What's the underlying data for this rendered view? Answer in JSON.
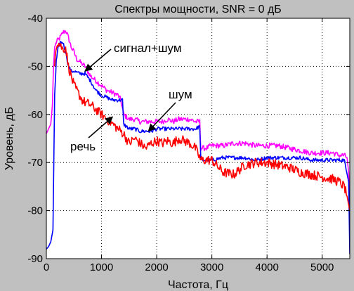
{
  "chart_data": {
    "type": "line",
    "title": "Спектры мощности, SNR = 0 дБ",
    "xlabel": "Частота, Гц",
    "ylabel": "Уровень, дБ",
    "xlim": [
      0,
      5500
    ],
    "ylim": [
      -90,
      -40
    ],
    "xticks": [
      0,
      1000,
      2000,
      3000,
      4000,
      5000
    ],
    "yticks": [
      -90,
      -80,
      -70,
      -60,
      -50,
      -40
    ],
    "xtick_labels": [
      "0",
      "1000",
      "2000",
      "3000",
      "4000",
      "5000"
    ],
    "ytick_labels": [
      "-90",
      "-80",
      "-70",
      "-60",
      "-50",
      "-40"
    ],
    "grid": true,
    "colors": {
      "background": "#c0c0c0",
      "axes": "#ffffff",
      "speech": "#ff0000",
      "noise": "#0000ff",
      "mix": "#ff00ff"
    },
    "series": [
      {
        "id": "mix",
        "name": "сигнал+шум",
        "color": "#ff00ff",
        "x": [
          0,
          40,
          80,
          110,
          130,
          150,
          180,
          210,
          250,
          300,
          350,
          400,
          450,
          500,
          550,
          600,
          650,
          700,
          750,
          800,
          900,
          1000,
          1100,
          1200,
          1300,
          1350,
          1400,
          1500,
          1600,
          1700,
          1800,
          1900,
          2000,
          2100,
          2200,
          2300,
          2400,
          2500,
          2600,
          2700,
          2780,
          2800,
          2900,
          3000,
          3200,
          3400,
          3600,
          3800,
          4000,
          4200,
          4400,
          4600,
          4800,
          5000,
          5200,
          5300,
          5400,
          5450,
          5480,
          5500
        ],
        "y": [
          -64,
          -63,
          -62,
          -58,
          -50,
          -46,
          -45,
          -44.5,
          -44,
          -43,
          -42.5,
          -44,
          -46,
          -47,
          -48.5,
          -49,
          -49.5,
          -50,
          -51,
          -52,
          -53,
          -54,
          -55,
          -55.5,
          -56,
          -57,
          -60,
          -61,
          -61,
          -61.5,
          -61.5,
          -61.5,
          -61.5,
          -61.5,
          -61,
          -61.5,
          -61,
          -61,
          -61,
          -61.5,
          -61.5,
          -67,
          -67,
          -66.5,
          -66.5,
          -66,
          -66,
          -66.5,
          -66.5,
          -66.5,
          -67,
          -67.5,
          -68,
          -68,
          -68,
          -68.5,
          -68.5,
          -69,
          -72,
          -79
        ]
      },
      {
        "id": "noise",
        "name": "шум",
        "color": "#0000ff",
        "x": [
          0,
          40,
          80,
          120,
          135,
          150,
          180,
          210,
          250,
          300,
          350,
          400,
          450,
          500,
          600,
          700,
          800,
          900,
          1000,
          1100,
          1200,
          1300,
          1380,
          1400,
          1500,
          1600,
          1700,
          1800,
          1900,
          2000,
          2100,
          2200,
          2300,
          2400,
          2500,
          2600,
          2700,
          2780,
          2800,
          2900,
          3000,
          3200,
          3400,
          3600,
          3800,
          4000,
          4200,
          4400,
          4600,
          4800,
          5000,
          5200,
          5400,
          5480,
          5500
        ],
        "y": [
          -88,
          -87.5,
          -86.5,
          -84,
          -70,
          -56,
          -49,
          -46.5,
          -45,
          -45,
          -47,
          -50,
          -51,
          -51,
          -51.5,
          -51.5,
          -53,
          -55,
          -56,
          -56.5,
          -57,
          -57,
          -57,
          -62,
          -63,
          -63,
          -63.5,
          -63.5,
          -63.5,
          -63,
          -63,
          -63,
          -63,
          -63,
          -63,
          -63,
          -63,
          -62.5,
          -69.5,
          -69.5,
          -69.5,
          -69,
          -69,
          -69,
          -69.5,
          -69,
          -69,
          -69,
          -69,
          -69.5,
          -69.5,
          -69.5,
          -69.5,
          -74,
          -89
        ]
      },
      {
        "id": "speech",
        "name": "речь",
        "color": "#ff0000",
        "x": [
          150,
          170,
          200,
          250,
          300,
          350,
          400,
          450,
          500,
          550,
          600,
          650,
          700,
          800,
          900,
          1000,
          1100,
          1200,
          1300,
          1400,
          1500,
          1600,
          1700,
          1800,
          1900,
          2000,
          2100,
          2200,
          2300,
          2400,
          2500,
          2600,
          2700,
          2800,
          2900,
          3000,
          3200,
          3400,
          3600,
          3800,
          4000,
          4200,
          4400,
          4600,
          4800,
          5000,
          5200,
          5300,
          5400,
          5450,
          5500
        ],
        "y": [
          -50,
          -46,
          -45,
          -45.5,
          -46.5,
          -46,
          -50,
          -52,
          -54,
          -55,
          -56,
          -57,
          -57.5,
          -58,
          -59,
          -60,
          -61,
          -62,
          -63,
          -64,
          -66,
          -65,
          -66,
          -67,
          -66,
          -65.5,
          -66,
          -65.5,
          -66,
          -65,
          -65.5,
          -66,
          -67,
          -69.5,
          -69.5,
          -69.5,
          -72,
          -72.5,
          -70.5,
          -70,
          -70,
          -70.5,
          -71,
          -72,
          -72.5,
          -73,
          -73.5,
          -74,
          -75,
          -77,
          -80
        ]
      }
    ],
    "annotations": [
      {
        "id": "mix",
        "text": "сигнал+шум",
        "point": [
          700,
          -51
        ]
      },
      {
        "id": "noise",
        "text": "шум",
        "point": [
          1850,
          -63.5
        ]
      },
      {
        "id": "speech",
        "text": "речь",
        "point": [
          1200,
          -60.5
        ]
      }
    ]
  }
}
